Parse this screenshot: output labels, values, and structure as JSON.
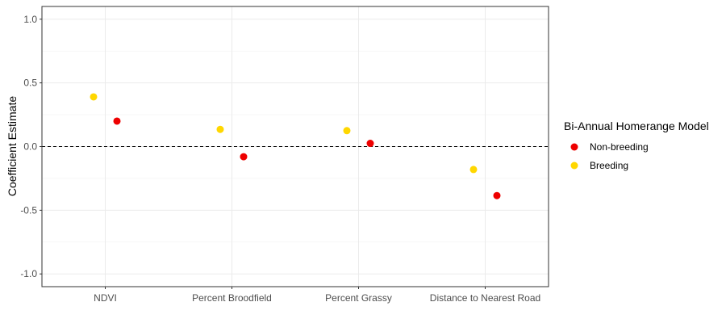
{
  "chart_data": {
    "type": "scatter",
    "title": "",
    "xlabel": "",
    "ylabel": "Coefficient Estimate",
    "categories": [
      "NDVI",
      "Percent Broodfield",
      "Percent Grassy",
      "Distance to Nearest Road"
    ],
    "ylim": [
      -1.1,
      1.1
    ],
    "yticks": [
      -1.0,
      -0.5,
      0.0,
      0.5,
      1.0
    ],
    "ytick_labels": [
      "-1.0",
      "-0.5",
      "0.0",
      "0.5",
      "1.0"
    ],
    "reference_line": {
      "y": 0,
      "style": "dashed"
    },
    "grid": true,
    "legend": {
      "title": "Bi-Annual Homerange Model",
      "position": "right"
    },
    "series": [
      {
        "name": "Non-breeding",
        "color": "#ee0000",
        "values": [
          0.2,
          -0.08,
          0.025,
          -0.385
        ],
        "ci_low": [
          0.18,
          -0.1,
          0.005,
          -0.41
        ],
        "ci_high": [
          0.22,
          -0.06,
          0.045,
          -0.36
        ]
      },
      {
        "name": "Breeding",
        "color": "#ffd700",
        "values": [
          0.39,
          0.135,
          0.125,
          -0.18
        ],
        "ci_low": [
          0.38,
          0.125,
          0.115,
          -0.19
        ],
        "ci_high": [
          0.4,
          0.145,
          0.135,
          -0.17
        ]
      }
    ]
  }
}
